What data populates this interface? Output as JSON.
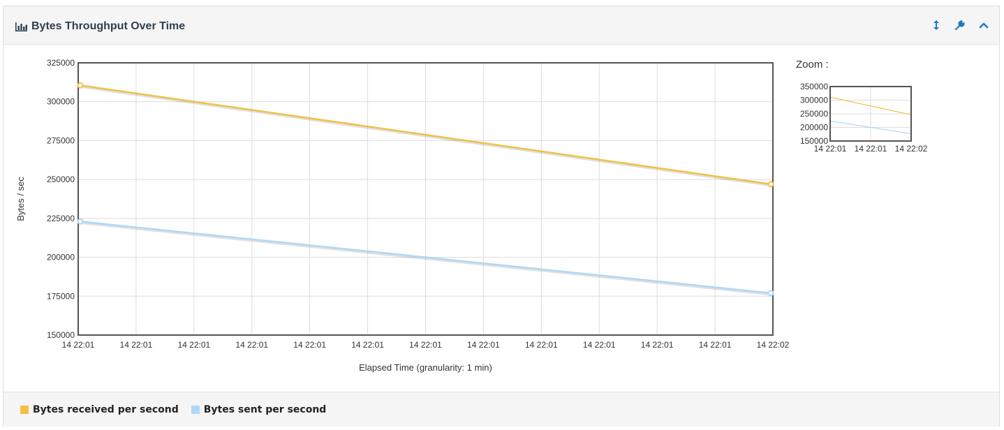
{
  "panel": {
    "title": "Bytes Throughput Over Time",
    "tools": [
      {
        "icon": "expand-vertical-icon"
      },
      {
        "icon": "wrench-icon"
      },
      {
        "icon": "chevron-up-icon"
      }
    ]
  },
  "zoom": {
    "label": "Zoom :"
  },
  "legend": [
    {
      "label": "Bytes received per second",
      "color": "#f2c043"
    },
    {
      "label": "Bytes sent per second",
      "color": "#afd8f8"
    }
  ],
  "chart_data": [
    {
      "type": "line",
      "title": "",
      "xlabel": "Elapsed Time (granularity: 1 min)",
      "ylabel": "Bytes / sec",
      "ylim": [
        150000,
        325000
      ],
      "yticks": [
        150000,
        175000,
        200000,
        225000,
        250000,
        275000,
        300000,
        325000
      ],
      "xtick_labels": [
        "14 22:01",
        "14 22:01",
        "14 22:01",
        "14 22:01",
        "14 22:01",
        "14 22:01",
        "14 22:01",
        "14 22:01",
        "14 22:01",
        "14 22:01",
        "14 22:01",
        "14 22:01",
        "14 22:02"
      ],
      "x": [
        "14 22:01",
        "14 22:02"
      ],
      "grid": true,
      "series": [
        {
          "name": "Bytes received per second",
          "color": "#f2c043",
          "values": [
            310500,
            247000
          ]
        },
        {
          "name": "Bytes sent per second",
          "color": "#afd8f8",
          "values": [
            223000,
            177000
          ]
        }
      ]
    },
    {
      "type": "line",
      "title": "Zoom :",
      "ylim": [
        150000,
        350000
      ],
      "yticks": [
        150000,
        200000,
        250000,
        300000,
        350000
      ],
      "xtick_labels": [
        "14 22:01",
        "14 22:01",
        "14 22:02"
      ],
      "x": [
        "14 22:01",
        "14 22:02"
      ],
      "grid": true,
      "series": [
        {
          "name": "Bytes received per second",
          "color": "#f2c043",
          "values": [
            310500,
            247000
          ]
        },
        {
          "name": "Bytes sent per second",
          "color": "#afd8f8",
          "values": [
            223000,
            177000
          ]
        }
      ]
    }
  ]
}
